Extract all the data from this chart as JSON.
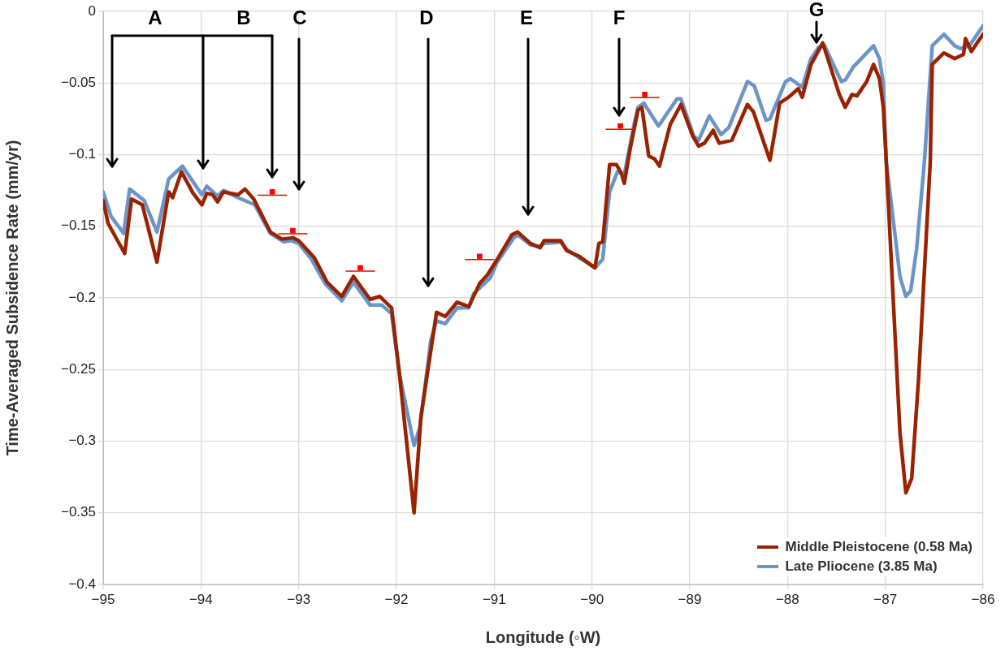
{
  "chart_data": {
    "type": "line",
    "xlabel": "Longitude (◦W)",
    "ylabel": "Time-Averaged Subsidence Rate (mm/yr)",
    "xlim": [
      -95,
      -86
    ],
    "xticks": [
      -95,
      -94,
      -93,
      -92,
      -91,
      -90,
      -89,
      -88,
      -87,
      -86
    ],
    "ylim": [
      -0.4,
      0
    ],
    "yticks": [
      -0.4,
      -0.35,
      -0.3,
      -0.25,
      -0.2,
      -0.15,
      -0.1,
      -0.05,
      0
    ],
    "grid": true,
    "legend": "bottom right",
    "line_style": "solid",
    "series": [
      {
        "name": "Middle Pleistocene (0.58 Ma)",
        "color": "#992200",
        "x": [
          -95.0,
          -94.95,
          -94.78,
          -94.71,
          -94.6,
          -94.45,
          -94.33,
          -94.29,
          -94.2,
          -94.08,
          -93.99,
          -93.94,
          -93.88,
          -93.83,
          -93.77,
          -93.62,
          -93.55,
          -93.46,
          -93.29,
          -93.17,
          -93.06,
          -93.0,
          -92.84,
          -92.71,
          -92.56,
          -92.44,
          -92.27,
          -92.17,
          -92.05,
          -91.97,
          -91.82,
          -91.75,
          -91.59,
          -91.5,
          -91.38,
          -91.26,
          -91.15,
          -91.07,
          -90.96,
          -90.82,
          -90.76,
          -90.63,
          -90.53,
          -90.49,
          -90.32,
          -90.26,
          -90.13,
          -89.97,
          -89.93,
          -89.89,
          -89.82,
          -89.75,
          -89.7,
          -89.67,
          -89.61,
          -89.53,
          -89.49,
          -89.42,
          -89.36,
          -89.31,
          -89.2,
          -89.09,
          -88.97,
          -88.91,
          -88.85,
          -88.76,
          -88.7,
          -88.57,
          -88.41,
          -88.35,
          -88.18,
          -88.08,
          -87.99,
          -87.89,
          -87.85,
          -87.76,
          -87.64,
          -87.47,
          -87.41,
          -87.34,
          -87.29,
          -87.19,
          -87.12,
          -87.06,
          -87.02,
          -86.99,
          -86.85,
          -86.79,
          -86.73,
          -86.66,
          -86.54,
          -86.52,
          -86.4,
          -86.29,
          -86.2,
          -86.18,
          -86.12,
          -86.06,
          -86.0
        ],
        "values": [
          -0.132,
          -0.148,
          -0.169,
          -0.131,
          -0.135,
          -0.175,
          -0.126,
          -0.13,
          -0.112,
          -0.127,
          -0.135,
          -0.127,
          -0.128,
          -0.133,
          -0.126,
          -0.128,
          -0.124,
          -0.131,
          -0.154,
          -0.159,
          -0.158,
          -0.16,
          -0.172,
          -0.189,
          -0.199,
          -0.185,
          -0.201,
          -0.199,
          -0.207,
          -0.253,
          -0.35,
          -0.283,
          -0.21,
          -0.213,
          -0.203,
          -0.206,
          -0.19,
          -0.184,
          -0.172,
          -0.156,
          -0.154,
          -0.162,
          -0.165,
          -0.16,
          -0.16,
          -0.167,
          -0.171,
          -0.179,
          -0.162,
          -0.161,
          -0.107,
          -0.107,
          -0.113,
          -0.12,
          -0.096,
          -0.069,
          -0.067,
          -0.101,
          -0.103,
          -0.108,
          -0.079,
          -0.065,
          -0.087,
          -0.094,
          -0.092,
          -0.083,
          -0.092,
          -0.09,
          -0.065,
          -0.07,
          -0.104,
          -0.064,
          -0.06,
          -0.054,
          -0.06,
          -0.037,
          -0.022,
          -0.058,
          -0.067,
          -0.058,
          -0.059,
          -0.049,
          -0.037,
          -0.047,
          -0.067,
          -0.105,
          -0.294,
          -0.336,
          -0.326,
          -0.257,
          -0.105,
          -0.037,
          -0.029,
          -0.033,
          -0.03,
          -0.019,
          -0.028,
          -0.022,
          -0.016
        ]
      },
      {
        "name": "Late Pliocene (3.85 Ma)",
        "color": "#6b95c9",
        "x": [
          -95.0,
          -94.92,
          -94.79,
          -94.73,
          -94.58,
          -94.45,
          -94.33,
          -94.19,
          -93.99,
          -93.94,
          -93.83,
          -93.77,
          -93.62,
          -93.45,
          -93.29,
          -93.15,
          -93.08,
          -93.0,
          -92.87,
          -92.73,
          -92.56,
          -92.44,
          -92.27,
          -92.15,
          -92.05,
          -91.97,
          -91.82,
          -91.76,
          -91.65,
          -91.59,
          -91.5,
          -91.38,
          -91.26,
          -91.21,
          -91.04,
          -90.97,
          -90.8,
          -90.76,
          -90.63,
          -90.54,
          -90.49,
          -90.32,
          -90.26,
          -90.13,
          -89.97,
          -89.89,
          -89.82,
          -89.74,
          -89.67,
          -89.57,
          -89.53,
          -89.47,
          -89.32,
          -89.13,
          -89.09,
          -88.96,
          -88.91,
          -88.8,
          -88.68,
          -88.6,
          -88.41,
          -88.34,
          -88.22,
          -88.18,
          -88.02,
          -87.97,
          -87.85,
          -87.76,
          -87.68,
          -87.62,
          -87.45,
          -87.41,
          -87.33,
          -87.12,
          -87.06,
          -87.02,
          -86.99,
          -86.85,
          -86.79,
          -86.74,
          -86.68,
          -86.6,
          -86.52,
          -86.4,
          -86.29,
          -86.23,
          -86.14,
          -86.0
        ],
        "values": [
          -0.126,
          -0.143,
          -0.155,
          -0.124,
          -0.132,
          -0.154,
          -0.117,
          -0.108,
          -0.128,
          -0.122,
          -0.129,
          -0.125,
          -0.13,
          -0.135,
          -0.155,
          -0.161,
          -0.16,
          -0.162,
          -0.173,
          -0.19,
          -0.202,
          -0.189,
          -0.205,
          -0.205,
          -0.211,
          -0.253,
          -0.303,
          -0.29,
          -0.23,
          -0.216,
          -0.218,
          -0.207,
          -0.207,
          -0.197,
          -0.186,
          -0.175,
          -0.158,
          -0.156,
          -0.163,
          -0.164,
          -0.162,
          -0.161,
          -0.166,
          -0.172,
          -0.179,
          -0.173,
          -0.126,
          -0.112,
          -0.114,
          -0.079,
          -0.067,
          -0.064,
          -0.08,
          -0.061,
          -0.061,
          -0.087,
          -0.09,
          -0.073,
          -0.086,
          -0.081,
          -0.049,
          -0.052,
          -0.076,
          -0.075,
          -0.049,
          -0.047,
          -0.053,
          -0.033,
          -0.025,
          -0.024,
          -0.049,
          -0.048,
          -0.039,
          -0.024,
          -0.033,
          -0.05,
          -0.105,
          -0.185,
          -0.199,
          -0.195,
          -0.166,
          -0.105,
          -0.024,
          -0.016,
          -0.024,
          -0.026,
          -0.024,
          -0.01
        ]
      },
      {
        "color": "#ff0000",
        "type": "scatter",
        "marker": "square",
        "x": [
          -93.27,
          -93.06,
          -92.37,
          -91.15,
          -89.71,
          -89.46
        ],
        "values": [
          -0.126,
          -0.153,
          -0.179,
          -0.171,
          -0.08,
          -0.058
        ],
        "xerrors": [
          0.15,
          0.15,
          0.15,
          0.15,
          0.15,
          0.15
        ]
      }
    ],
    "annotations": [
      "A",
      "B",
      "C",
      "D",
      "E",
      "F",
      "G"
    ]
  }
}
